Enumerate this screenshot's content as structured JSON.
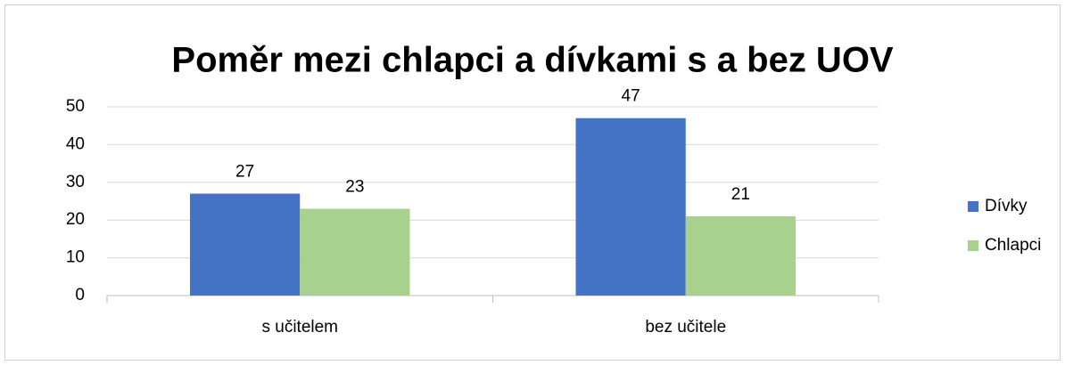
{
  "chart_data": {
    "type": "bar",
    "title": "Poměr mezi chlapci a dívkami s a bez UOV",
    "categories": [
      "s učitelem",
      "bez učitele"
    ],
    "series": [
      {
        "name": "Dívky",
        "color": "#4472c4",
        "values": [
          27,
          47
        ]
      },
      {
        "name": "Chlapci",
        "color": "#a9d18e",
        "values": [
          23,
          21
        ]
      }
    ],
    "ylim": [
      0,
      50
    ],
    "yticks": [
      0,
      10,
      20,
      30,
      40,
      50
    ],
    "grid": true,
    "legend": "right"
  }
}
